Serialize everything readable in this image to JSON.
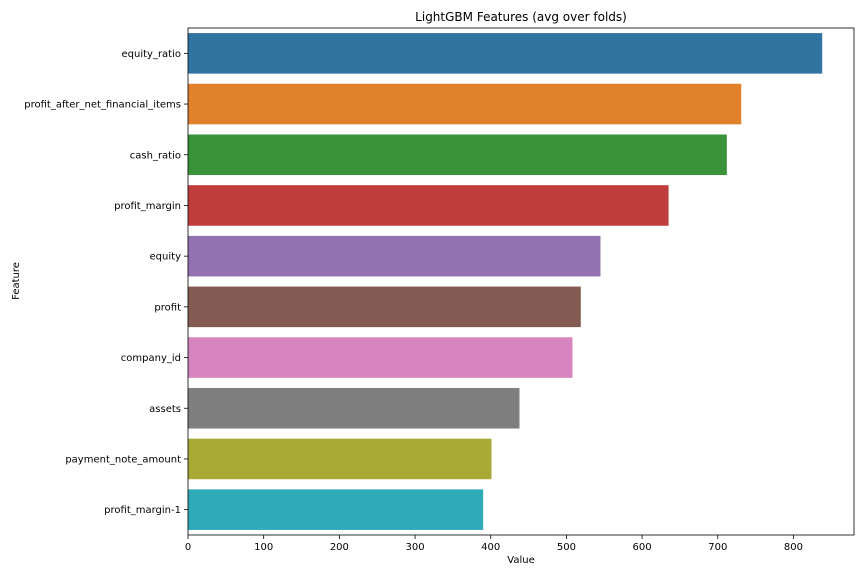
{
  "chart_data": {
    "type": "bar",
    "orientation": "horizontal",
    "title": "LightGBM Features (avg over folds)",
    "xlabel": "Value",
    "ylabel": "Feature",
    "xlim": [
      0,
      880
    ],
    "xticks": [
      0,
      100,
      200,
      300,
      400,
      500,
      600,
      700,
      800
    ],
    "grid": false,
    "categories": [
      "equity_ratio",
      "profit_after_net_financial_items",
      "cash_ratio",
      "profit_margin",
      "equity",
      "profit",
      "company_id",
      "assets",
      "payment_note_amount",
      "profit_margin-1"
    ],
    "values": [
      838,
      731,
      712,
      635,
      545,
      519,
      508,
      438,
      401,
      390
    ],
    "colors": [
      "#3274a1",
      "#e1812c",
      "#3a923a",
      "#c03d3e",
      "#9372b2",
      "#845b53",
      "#d684bd",
      "#7f7f7f",
      "#a9aa35",
      "#2eaab8"
    ]
  }
}
